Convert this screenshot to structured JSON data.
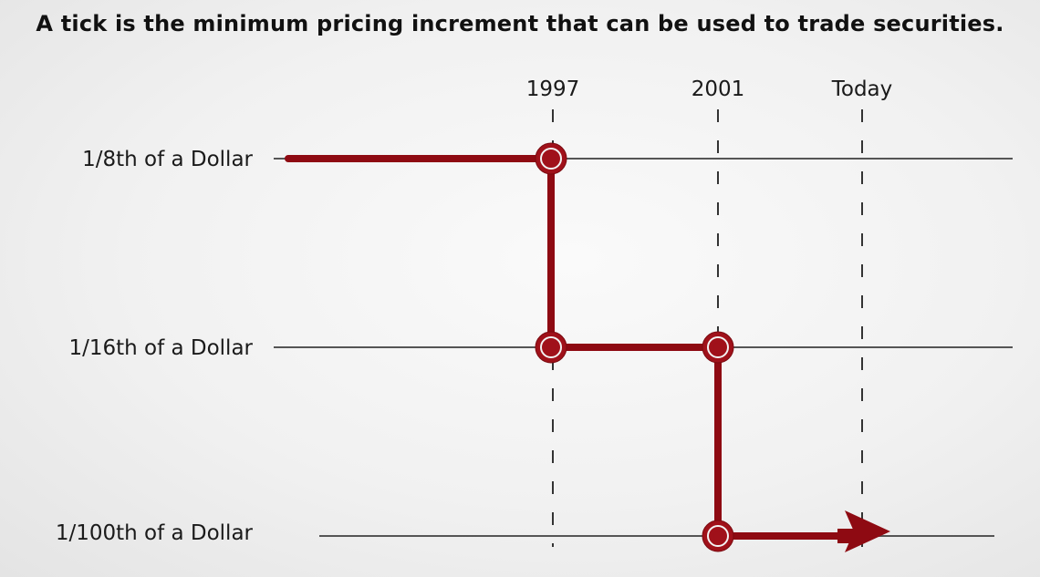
{
  "title": "A tick is the minimum pricing increment that can be used to trade securities.",
  "years": [
    "1997",
    "2001",
    "Today"
  ],
  "rows": [
    "1/8th of a Dollar",
    "1/16th of a Dollar",
    "1/100th of a Dollar"
  ],
  "colors": {
    "path": "#8e0a12",
    "marker": "#a0111a",
    "text": "#1a1a1a"
  },
  "steps": [
    {
      "row": 0,
      "from": "start",
      "to": "1997"
    },
    {
      "row": 1,
      "from": "1997",
      "to": "2001"
    },
    {
      "row": 2,
      "from": "2001",
      "to": "Today"
    }
  ]
}
